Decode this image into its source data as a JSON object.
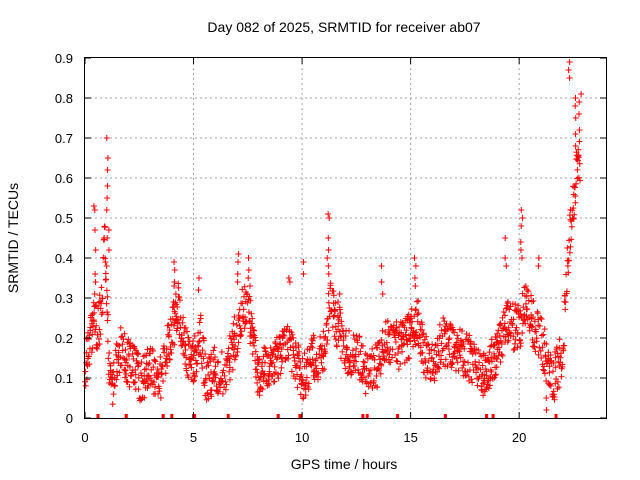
{
  "chart_data": {
    "type": "scatter",
    "title": "Day 082 of 2025, SRMTID for receiver ab07",
    "xlabel": "GPS time / hours",
    "ylabel": "SRMTID / TECUs",
    "xlim": [
      0,
      24
    ],
    "ylim": [
      0,
      0.9
    ],
    "x_ticks": [
      0,
      5,
      10,
      15,
      20
    ],
    "x_tick_labels": [
      "0",
      "5",
      "10",
      "15",
      "20"
    ],
    "y_ticks": [
      0,
      0.1,
      0.2,
      0.3,
      0.4,
      0.5,
      0.6,
      0.7,
      0.8,
      0.9
    ],
    "y_tick_labels": [
      "0",
      "0.1",
      "0.2",
      "0.3",
      "0.4",
      "0.5",
      "0.6",
      "0.7",
      "0.8",
      "0.9"
    ],
    "grid": true,
    "marker": "plus",
    "color": "#ff0000",
    "series": [
      {
        "name": "SRMTID",
        "profile_x": [
          0.0,
          0.2,
          0.4,
          0.6,
          0.8,
          0.9,
          1.0,
          1.1,
          1.3,
          1.6,
          2.0,
          2.5,
          3.0,
          3.5,
          4.0,
          4.3,
          4.6,
          5.0,
          5.3,
          5.6,
          6.0,
          6.5,
          7.0,
          7.3,
          7.6,
          8.0,
          8.5,
          9.0,
          9.5,
          10.0,
          10.5,
          11.0,
          11.3,
          11.6,
          12.0,
          12.5,
          13.0,
          13.5,
          14.0,
          14.5,
          15.0,
          15.3,
          15.6,
          16.0,
          16.5,
          17.0,
          17.5,
          18.0,
          18.5,
          19.0,
          19.5,
          20.0,
          20.3,
          20.6,
          21.0,
          21.3,
          21.6,
          22.0,
          22.3,
          22.6,
          22.8
        ],
        "profile_y": [
          0.12,
          0.18,
          0.24,
          0.22,
          0.3,
          0.45,
          0.32,
          0.12,
          0.08,
          0.17,
          0.14,
          0.1,
          0.12,
          0.1,
          0.22,
          0.28,
          0.18,
          0.13,
          0.21,
          0.09,
          0.12,
          0.11,
          0.22,
          0.28,
          0.25,
          0.11,
          0.13,
          0.16,
          0.18,
          0.1,
          0.15,
          0.16,
          0.3,
          0.24,
          0.17,
          0.16,
          0.11,
          0.13,
          0.2,
          0.18,
          0.21,
          0.25,
          0.16,
          0.14,
          0.19,
          0.18,
          0.16,
          0.13,
          0.1,
          0.18,
          0.24,
          0.22,
          0.3,
          0.24,
          0.2,
          0.14,
          0.1,
          0.16,
          0.45,
          0.6,
          0.65
        ],
        "spread": 0.06,
        "spikes": [
          {
            "x": 0.45,
            "values": [
              0.53,
              0.52,
              0.47,
              0.42,
              0.36,
              0.34,
              0.31
            ]
          },
          {
            "x": 1.05,
            "values": [
              0.7,
              0.65,
              0.62,
              0.58,
              0.55,
              0.52,
              0.47,
              0.45,
              0.42,
              0.38
            ]
          },
          {
            "x": 4.15,
            "values": [
              0.39,
              0.37,
              0.34,
              0.33,
              0.31
            ]
          },
          {
            "x": 5.2,
            "values": [
              0.35,
              0.32
            ]
          },
          {
            "x": 7.05,
            "values": [
              0.41,
              0.39,
              0.36,
              0.34
            ]
          },
          {
            "x": 7.55,
            "values": [
              0.4,
              0.37,
              0.35,
              0.33
            ]
          },
          {
            "x": 9.4,
            "values": [
              0.35,
              0.34
            ]
          },
          {
            "x": 10.05,
            "values": [
              0.39,
              0.36
            ]
          },
          {
            "x": 11.2,
            "values": [
              0.51,
              0.5,
              0.45,
              0.42,
              0.4,
              0.38,
              0.36
            ]
          },
          {
            "x": 11.7,
            "values": [
              0.31,
              0.29
            ]
          },
          {
            "x": 13.7,
            "values": [
              0.38,
              0.34,
              0.31
            ]
          },
          {
            "x": 15.2,
            "values": [
              0.4,
              0.38,
              0.35,
              0.33
            ]
          },
          {
            "x": 19.4,
            "values": [
              0.45,
              0.4,
              0.38
            ]
          },
          {
            "x": 20.1,
            "values": [
              0.52,
              0.5,
              0.48,
              0.44,
              0.42,
              0.4
            ]
          },
          {
            "x": 20.85,
            "values": [
              0.4,
              0.38
            ]
          },
          {
            "x": 21.2,
            "values": [
              0.05,
              0.02
            ]
          },
          {
            "x": 22.3,
            "values": [
              0.89,
              0.87,
              0.85
            ]
          },
          {
            "x": 22.6,
            "values": [
              0.8,
              0.78,
              0.75,
              0.71,
              0.68
            ]
          },
          {
            "x": 22.8,
            "values": [
              0.81,
              0.79,
              0.76,
              0.72
            ]
          }
        ]
      }
    ],
    "gap_markers_x": [
      0.6,
      1.9,
      3.6,
      4.0,
      5.0,
      5.05,
      6.6,
      8.9,
      9.9,
      9.95,
      12.8,
      13.0,
      14.4,
      16.6,
      18.5,
      18.8,
      21.7
    ]
  }
}
